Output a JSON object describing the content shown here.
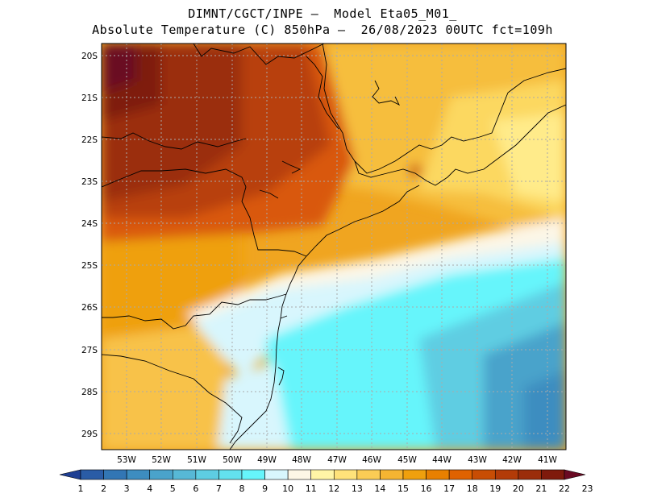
{
  "title": {
    "line1": "DIMNT/CGCT/INPE –  Model Eta05_M01_",
    "line2": "Absolute Temperature (C) 850hPa –  26/08/2023 00UTC fct=109h"
  },
  "map": {
    "lat_labels": [
      "20S",
      "21S",
      "22S",
      "23S",
      "24S",
      "25S",
      "26S",
      "27S",
      "28S",
      "29S"
    ],
    "lon_labels": [
      "53W",
      "52W",
      "51W",
      "50W",
      "49W",
      "48W",
      "47W",
      "46W",
      "45W",
      "44W",
      "43W",
      "42W",
      "41W"
    ]
  },
  "colorbar": {
    "labels": [
      "1",
      "2",
      "3",
      "4",
      "5",
      "6",
      "7",
      "8",
      "9",
      "10",
      "11",
      "12",
      "13",
      "14",
      "15",
      "16",
      "17",
      "18",
      "19",
      "20",
      "21",
      "22",
      "23"
    ],
    "colors": [
      "#1f3f93",
      "#2a5ca6",
      "#3276b4",
      "#3d8dc0",
      "#4aa3cb",
      "#57b8d6",
      "#5ecde2",
      "#63e1ee",
      "#66f5fb",
      "#d8f6fd",
      "#fdf6e6",
      "#fff5a6",
      "#ffe27a",
      "#fbcc55",
      "#f5b432",
      "#efa00d",
      "#e88000",
      "#e06200",
      "#c84d04",
      "#b33b08",
      "#9b2d0a",
      "#7f1a0c",
      "#6a0a23"
    ]
  }
}
